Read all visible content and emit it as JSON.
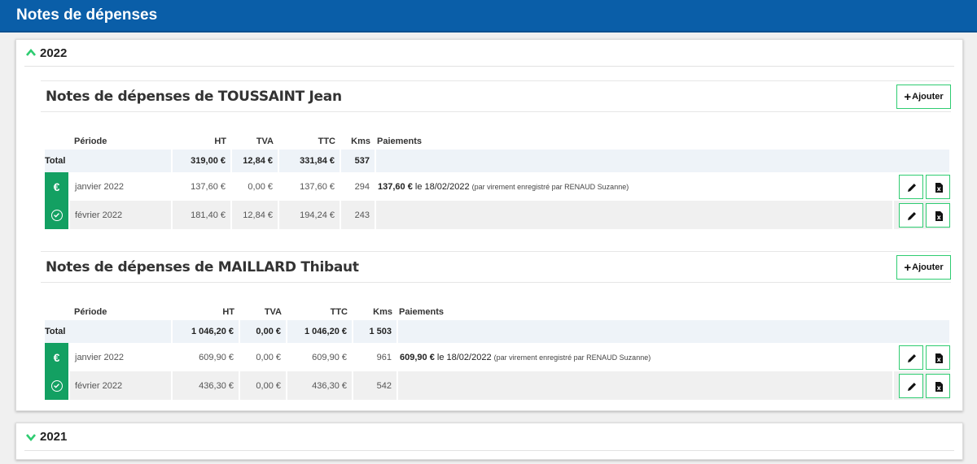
{
  "header": {
    "title": "Notes de dépenses"
  },
  "years": [
    {
      "label": "2022",
      "expanded": true
    },
    {
      "label": "2021",
      "expanded": false
    }
  ],
  "columns": {
    "period": "Période",
    "ht": "HT",
    "tva": "TVA",
    "ttc": "TTC",
    "kms": "Kms",
    "payments": "Paiements"
  },
  "add_label": "Ajouter",
  "employees": [
    {
      "title": "Notes de dépenses de TOUSSAINT Jean",
      "total": {
        "label": "Total",
        "ht": "319,00 €",
        "tva": "12,84 €",
        "ttc": "331,84 €",
        "kms": "537"
      },
      "rows": [
        {
          "status": "paid",
          "period": "janvier 2022",
          "ht": "137,60 €",
          "tva": "0,00 €",
          "ttc": "137,60 €",
          "kms": "294",
          "pay_amount": "137,60 €",
          "pay_date": " le 18/02/2022 ",
          "pay_note": "(par virement enregistré par RENAUD Suzanne)"
        },
        {
          "status": "validated",
          "period": "février 2022",
          "ht": "181,40 €",
          "tva": "12,84 €",
          "ttc": "194,24 €",
          "kms": "243",
          "pay_amount": "",
          "pay_date": "",
          "pay_note": ""
        }
      ]
    },
    {
      "title": "Notes de dépenses de MAILLARD Thibaut",
      "total": {
        "label": "Total",
        "ht": "1 046,20 €",
        "tva": "0,00 €",
        "ttc": "1 046,20 €",
        "kms": "1 503"
      },
      "rows": [
        {
          "status": "paid",
          "period": "janvier 2022",
          "ht": "609,90 €",
          "tva": "0,00 €",
          "ttc": "609,90 €",
          "kms": "961",
          "pay_amount": "609,90 €",
          "pay_date": " le 18/02/2022 ",
          "pay_note": "(par virement enregistré par RENAUD Suzanne)"
        },
        {
          "status": "validated",
          "period": "février 2022",
          "ht": "436,30 €",
          "tva": "0,00 €",
          "ttc": "436,30 €",
          "kms": "542",
          "pay_amount": "",
          "pay_date": "",
          "pay_note": ""
        }
      ]
    }
  ],
  "colors": {
    "header_bg": "#0a5ea8",
    "status_green": "#13a062",
    "button_border": "#2ecc71"
  }
}
